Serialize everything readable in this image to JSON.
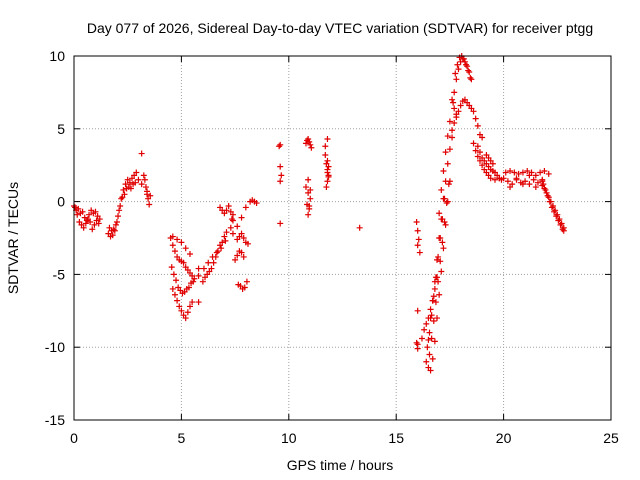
{
  "chart_data": {
    "type": "scatter",
    "title": "Day 077 of 2026, Sidereal Day-to-day VTEC variation (SDTVAR) for receiver ptgg",
    "xlabel": "GPS time / hours",
    "ylabel": "SDTVAR / TECUs",
    "xlim": [
      0,
      25
    ],
    "ylim": [
      -15,
      10
    ],
    "xticks": [
      0,
      5,
      10,
      15,
      20,
      25
    ],
    "yticks": [
      -15,
      -10,
      -5,
      0,
      5,
      10
    ],
    "xtick_labels": [
      "0",
      "5",
      "10",
      "15",
      "20",
      "25"
    ],
    "ytick_labels": [
      "-15",
      "-10",
      "-5",
      "0",
      "5",
      "10"
    ],
    "grid": true,
    "marker": "+",
    "color": "#e00000",
    "series": [
      {
        "name": "ptgg",
        "x": [
          0.0,
          0.1,
          0.2,
          0.3,
          0.4,
          0.5,
          0.6,
          0.7,
          0.8,
          0.9,
          1.0,
          1.1,
          1.2,
          0.05,
          0.15,
          0.25,
          0.35,
          0.45,
          0.55,
          0.65,
          0.75,
          0.85,
          0.95,
          1.05,
          1.15,
          1.6,
          1.7,
          1.8,
          1.9,
          2.0,
          2.1,
          2.2,
          2.3,
          2.4,
          2.5,
          2.6,
          2.7,
          2.8,
          2.9,
          3.0,
          1.65,
          1.75,
          1.85,
          1.95,
          2.05,
          2.15,
          2.25,
          2.35,
          2.45,
          2.55,
          2.65,
          2.75,
          2.85,
          3.15,
          3.25,
          3.3,
          3.35,
          3.4,
          3.45,
          3.5,
          3.15,
          3.4,
          3.55,
          4.5,
          4.6,
          4.7,
          4.8,
          4.9,
          5.0,
          5.1,
          5.2,
          5.3,
          5.4,
          5.5,
          5.6,
          4.55,
          4.65,
          4.75,
          4.85,
          4.95,
          5.05,
          5.15,
          5.25,
          5.35,
          5.45,
          5.55,
          4.6,
          4.7,
          4.8,
          4.9,
          5.0,
          5.1,
          5.2,
          5.3,
          5.4,
          5.5,
          4.6,
          4.8,
          5.0,
          5.2,
          5.4,
          5.8,
          5.8,
          5.8,
          6.0,
          6.1,
          6.2,
          6.3,
          6.4,
          6.5,
          6.6,
          6.7,
          6.8,
          6.9,
          7.0,
          7.1,
          6.05,
          6.25,
          6.45,
          6.65,
          6.85,
          7.05,
          6.8,
          6.9,
          7.0,
          7.1,
          7.2,
          7.3,
          7.4,
          7.6,
          7.7,
          7.8,
          7.9,
          8.0,
          8.1,
          7.65,
          7.75,
          7.85,
          7.95,
          8.05,
          7.5,
          7.6,
          7.7,
          7.8,
          7.9,
          7.4,
          7.6,
          7.8,
          8.0,
          8.2,
          8.3,
          8.4,
          8.5,
          7.3,
          7.35,
          7.4,
          9.55,
          9.6,
          9.6,
          9.65,
          9.6,
          9.6,
          10.8,
          10.85,
          10.9,
          10.95,
          11.0,
          11.05,
          10.8,
          10.9,
          11.0,
          10.85,
          10.95,
          10.9,
          10.95,
          11.0,
          10.9,
          11.7,
          11.75,
          11.8,
          11.85,
          11.7,
          11.8,
          11.8,
          11.75,
          11.85,
          11.8,
          11.85,
          11.8,
          13.3,
          15.95,
          16.0,
          16.05,
          16.0,
          16.1,
          16.0,
          16.5,
          16.6,
          16.7,
          16.8,
          16.9,
          17.0,
          17.1,
          17.2,
          17.3,
          17.4,
          17.5,
          17.6,
          16.55,
          16.65,
          16.75,
          16.85,
          16.95,
          17.05,
          17.15,
          17.25,
          17.35,
          17.45,
          16.4,
          16.5,
          16.6,
          16.7,
          16.8,
          16.9,
          17.0,
          17.1,
          17.2,
          17.3,
          17.4,
          17.5,
          16.45,
          16.55,
          16.65,
          16.75,
          16.85,
          16.95,
          17.05,
          17.15,
          17.25,
          16.2,
          16.3,
          16.4,
          16.5,
          16.6,
          16.7,
          16.8,
          16.9,
          16.0,
          15.95,
          16.0,
          17.0,
          17.1,
          17.2,
          17.3,
          17.4,
          17.5,
          17.7,
          17.8,
          17.9,
          18.0,
          18.1,
          18.2,
          18.3,
          18.4,
          18.5,
          17.75,
          17.85,
          17.95,
          18.05,
          18.15,
          18.25,
          18.35,
          18.45,
          17.6,
          17.7,
          17.8,
          17.9,
          18.0,
          18.1,
          18.2,
          18.3,
          18.4,
          18.5,
          18.6,
          18.7,
          18.8,
          18.9,
          19.0,
          17.6,
          17.65,
          17.7,
          17.8,
          18.6,
          18.7,
          18.8,
          18.9,
          19.0,
          19.1,
          19.2,
          19.3,
          19.4,
          19.6,
          19.8,
          19.2,
          19.3,
          19.4,
          19.5,
          18.8,
          18.9,
          19.0,
          19.1,
          19.2,
          19.3,
          19.4,
          19.5,
          19.6,
          19.7,
          19.8,
          19.9,
          20.0,
          20.1,
          20.3,
          20.5,
          20.7,
          20.9,
          21.1,
          21.3,
          21.5,
          21.7,
          21.9,
          22.1,
          20.2,
          20.4,
          20.6,
          20.8,
          21.0,
          21.2,
          21.4,
          21.6,
          21.8,
          20.3,
          20.6,
          20.9,
          21.2,
          21.5,
          21.8,
          21.8,
          21.9,
          22.0,
          22.1,
          22.2,
          22.3,
          22.4,
          22.5,
          22.6,
          22.7,
          22.8,
          21.85,
          21.95,
          22.05,
          22.15,
          22.25,
          22.35,
          22.45,
          22.55,
          22.65,
          22.75,
          22.8
        ],
        "y": [
          -0.3,
          -0.6,
          -0.5,
          -0.8,
          -0.7,
          -1.1,
          -1.3,
          -0.9,
          -0.6,
          -0.8,
          -0.7,
          -1.0,
          -1.2,
          -0.4,
          -0.9,
          -1.4,
          -1.6,
          -1.8,
          -1.5,
          -1.2,
          -1.4,
          -1.9,
          -1.6,
          -1.3,
          -1.5,
          -2.2,
          -2.4,
          -2.3,
          -2.0,
          -1.4,
          -0.6,
          0.2,
          0.8,
          1.2,
          1.5,
          1.3,
          1.6,
          1.8,
          2.0,
          1.5,
          -1.8,
          -2.0,
          -1.9,
          -1.6,
          -1.0,
          -0.3,
          0.3,
          0.5,
          0.9,
          1.0,
          0.9,
          1.2,
          1.3,
          3.3,
          1.8,
          1.5,
          1.0,
          0.5,
          0.2,
          -0.2,
          1.2,
          0.7,
          0.4,
          -2.5,
          -3.0,
          -3.4,
          -3.8,
          -4.0,
          -4.1,
          -4.2,
          -4.5,
          -4.7,
          -4.9,
          -5.1,
          -5.3,
          -4.5,
          -5.0,
          -5.4,
          -5.9,
          -6.1,
          -6.3,
          -6.2,
          -6.0,
          -5.9,
          -5.6,
          -5.5,
          -6.0,
          -6.4,
          -6.8,
          -7.2,
          -7.5,
          -7.8,
          -8.0,
          -7.6,
          -7.2,
          -6.9,
          -2.4,
          -2.6,
          -2.8,
          -3.2,
          -3.6,
          -4.6,
          -5.1,
          -6.9,
          -5.5,
          -5.2,
          -5.0,
          -4.8,
          -4.6,
          -4.2,
          -3.8,
          -3.4,
          -3.0,
          -2.8,
          -2.4,
          -2.1,
          -4.6,
          -4.2,
          -3.8,
          -3.5,
          -3.2,
          -2.7,
          -0.4,
          -0.6,
          -0.8,
          -0.6,
          -0.3,
          -0.7,
          -0.9,
          -2.6,
          -2.4,
          -2.2,
          -2.5,
          -2.8,
          -2.9,
          -5.7,
          -5.8,
          -6.0,
          -5.9,
          -5.5,
          -4.0,
          -3.7,
          -3.4,
          -3.5,
          -3.8,
          -2.2,
          -1.7,
          -1.1,
          -0.4,
          0.0,
          0.1,
          0.0,
          -0.1,
          -1.8,
          -1.2,
          -1.3,
          3.8,
          3.9,
          2.4,
          1.8,
          1.4,
          -1.5,
          4.0,
          4.2,
          4.3,
          4.1,
          3.9,
          3.7,
          1.0,
          0.6,
          0.2,
          -0.2,
          -0.5,
          -0.9,
          -0.3,
          0.8,
          1.5,
          3.2,
          2.6,
          2.2,
          1.8,
          3.8,
          4.3,
          1.4,
          1.0,
          1.7,
          2.0,
          2.4,
          2.8,
          -1.8,
          -1.4,
          -2.0,
          -2.6,
          -3.0,
          -3.5,
          -9.8,
          -9.5,
          -8.0,
          -6.8,
          -5.5,
          -4.0,
          -2.5,
          -1.2,
          0.2,
          1.4,
          2.6,
          3.6,
          4.4,
          -10.5,
          -9.4,
          -8.2,
          -6.9,
          -5.5,
          -4.1,
          -2.8,
          -1.4,
          -0.1,
          1.2,
          -11.0,
          -11.4,
          -11.6,
          -10.8,
          -9.6,
          -8.0,
          -6.4,
          -4.8,
          -3.2,
          -1.6,
          0.0,
          1.4,
          -10.0,
          -9.0,
          -7.8,
          -6.5,
          -5.2,
          -3.8,
          -2.5,
          -1.2,
          0.2,
          -9.4,
          -8.8,
          -8.4,
          -8.0,
          -7.4,
          -6.8,
          -6.0,
          -5.2,
          -7.5,
          -9.7,
          -10.1,
          -0.8,
          0.8,
          2.1,
          3.4,
          4.5,
          5.5,
          7.5,
          8.4,
          9.1,
          9.6,
          9.8,
          9.6,
          9.3,
          8.9,
          8.4,
          8.8,
          9.4,
          9.9,
          10.0,
          9.8,
          9.4,
          9.0,
          8.5,
          4.9,
          5.4,
          5.8,
          6.2,
          6.6,
          6.9,
          7.0,
          6.8,
          6.6,
          6.4,
          6.2,
          5.7,
          5.2,
          4.6,
          4.4,
          7.0,
          6.8,
          6.4,
          6.0,
          4.0,
          3.5,
          3.1,
          2.8,
          2.5,
          2.2,
          2.0,
          1.8,
          1.6,
          1.5,
          1.6,
          3.2,
          3.0,
          2.8,
          2.6,
          3.8,
          3.4,
          3.0,
          2.8,
          2.6,
          2.4,
          2.2,
          2.1,
          2.0,
          1.8,
          1.6,
          1.5,
          1.6,
          2.0,
          2.1,
          2.0,
          1.9,
          2.0,
          2.1,
          2.0,
          1.8,
          2.0,
          2.1,
          1.9,
          1.4,
          1.2,
          1.5,
          1.3,
          1.4,
          1.2,
          1.5,
          1.3,
          1.1,
          1.0,
          1.6,
          1.2,
          1.8,
          1.0,
          1.4,
          1.5,
          0.9,
          0.6,
          0.3,
          0.0,
          -0.3,
          -0.6,
          -0.9,
          -1.2,
          -1.5,
          -1.8,
          1.2,
          0.8,
          0.4,
          0.0,
          -0.4,
          -0.7,
          -1.0,
          -1.3,
          -1.6,
          -1.9,
          -2.0
        ]
      }
    ]
  }
}
